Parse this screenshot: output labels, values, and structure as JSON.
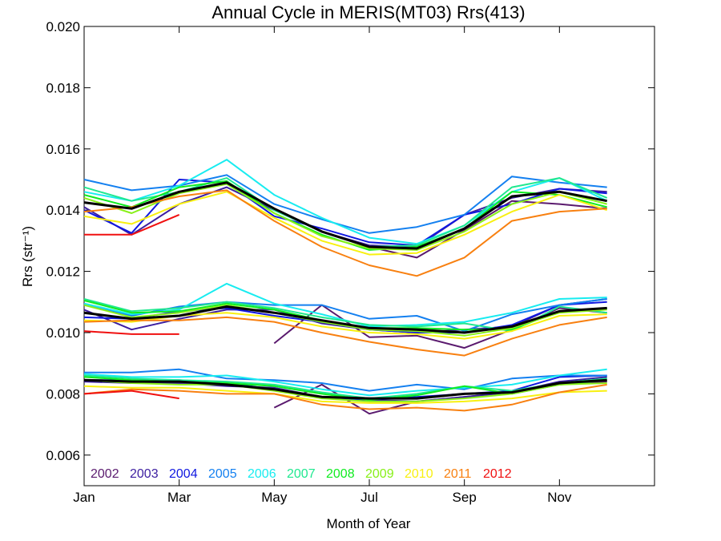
{
  "chart_data": {
    "type": "line",
    "title": "Annual Cycle in MERIS(MT03) Rrs(413)",
    "xlabel": "Month of Year",
    "ylabel": "Rrs (str⁻¹)",
    "xlim": [
      1,
      13
    ],
    "ylim": [
      0.005,
      0.02
    ],
    "x_ticks": [
      {
        "label": "Jan",
        "month": 1
      },
      {
        "label": "Mar",
        "month": 3
      },
      {
        "label": "May",
        "month": 5
      },
      {
        "label": "Jul",
        "month": 7
      },
      {
        "label": "Sep",
        "month": 9
      },
      {
        "label": "Nov",
        "month": 11
      }
    ],
    "y_ticks": [
      "0.006",
      "0.008",
      "0.010",
      "0.012",
      "0.014",
      "0.016",
      "0.018",
      "0.020"
    ],
    "legend_position": "bottom-left",
    "series": [
      {
        "name": "2002",
        "color": "#5a1a6e",
        "group": "upper",
        "values": [
          null,
          null,
          null,
          null,
          14.9,
          null,
          12.8,
          12.45,
          13.35,
          14.3,
          14.2,
          14.05
        ]
      },
      {
        "name": "2003",
        "color": "#3c1ea0",
        "group": "upper",
        "values": [
          14.1,
          13.2,
          14.2,
          14.75,
          14.0,
          13.3,
          12.85,
          12.8,
          13.85,
          14.4,
          14.7,
          14.6
        ]
      },
      {
        "name": "2004",
        "color": "#1018e0",
        "group": "upper",
        "values": [
          14.0,
          13.25,
          15.0,
          14.9,
          13.8,
          13.4,
          12.95,
          12.85,
          13.85,
          14.2,
          14.7,
          14.55
        ]
      },
      {
        "name": "2005",
        "color": "#1480f0",
        "group": "upper",
        "values": [
          15.0,
          14.65,
          14.8,
          15.15,
          14.2,
          13.7,
          13.25,
          13.45,
          13.85,
          15.1,
          14.9,
          14.75
        ]
      },
      {
        "name": "2006",
        "color": "#18ecf0",
        "group": "upper",
        "values": [
          14.6,
          14.3,
          14.8,
          15.65,
          14.5,
          13.75,
          13.1,
          12.9,
          13.5,
          14.6,
          15.05,
          14.3
        ]
      },
      {
        "name": "2007",
        "color": "#20e890",
        "group": "upper",
        "values": [
          14.75,
          14.3,
          14.6,
          15.05,
          14.0,
          13.3,
          12.8,
          12.85,
          13.5,
          14.75,
          15.05,
          14.4
        ]
      },
      {
        "name": "2008",
        "color": "#10ec20",
        "group": "upper",
        "values": [
          14.5,
          14.1,
          14.75,
          14.95,
          13.9,
          13.2,
          12.7,
          12.8,
          13.4,
          14.6,
          14.5,
          14.1
        ]
      },
      {
        "name": "2009",
        "color": "#88f018",
        "group": "upper",
        "values": [
          14.4,
          13.9,
          14.55,
          14.85,
          13.9,
          13.15,
          12.75,
          12.7,
          13.3,
          14.2,
          14.6,
          14.2
        ]
      },
      {
        "name": "2010",
        "color": "#f8f010",
        "group": "upper",
        "values": [
          13.8,
          13.55,
          14.2,
          14.6,
          13.75,
          13.0,
          12.55,
          12.6,
          13.2,
          13.95,
          14.5,
          14.0
        ]
      },
      {
        "name": "2011",
        "color": "#f88010",
        "group": "upper",
        "values": [
          13.95,
          14.1,
          14.45,
          14.65,
          13.65,
          12.8,
          12.2,
          11.85,
          12.45,
          13.65,
          13.95,
          14.05
        ]
      },
      {
        "name": "2012",
        "color": "#f01010",
        "group": "upper",
        "values": [
          13.2,
          13.2,
          13.85,
          null,
          null,
          null,
          null,
          null,
          null,
          null,
          null,
          null
        ]
      },
      {
        "name": "",
        "color": "#000000",
        "group": "upper",
        "mean": true,
        "values": [
          14.25,
          14.05,
          14.6,
          14.9,
          14.05,
          13.3,
          12.8,
          12.75,
          13.4,
          14.45,
          14.6,
          14.3
        ]
      },
      {
        "name": "2002",
        "color": "#5a1a6e",
        "group": "middle",
        "values": [
          null,
          null,
          null,
          null,
          9.65,
          10.9,
          9.85,
          9.9,
          9.5,
          10.1,
          10.8,
          10.65
        ]
      },
      {
        "name": "2003",
        "color": "#3c1ea0",
        "group": "middle",
        "values": [
          10.75,
          10.1,
          10.45,
          10.75,
          10.75,
          10.3,
          10.1,
          10.0,
          10.1,
          10.2,
          10.9,
          11.1
        ]
      },
      {
        "name": "2004",
        "color": "#1018e0",
        "group": "middle",
        "values": [
          10.5,
          10.45,
          10.7,
          10.8,
          10.55,
          10.35,
          10.1,
          10.0,
          10.0,
          10.25,
          10.9,
          11.0
        ]
      },
      {
        "name": "2005",
        "color": "#1480f0",
        "group": "middle",
        "values": [
          10.95,
          10.55,
          10.85,
          11.0,
          10.9,
          10.9,
          10.45,
          10.55,
          10.05,
          10.6,
          10.9,
          11.1
        ]
      },
      {
        "name": "2006",
        "color": "#18ecf0",
        "group": "middle",
        "values": [
          10.95,
          10.6,
          10.75,
          11.6,
          10.95,
          10.6,
          10.2,
          10.25,
          10.35,
          10.65,
          11.1,
          11.15
        ]
      },
      {
        "name": "2007",
        "color": "#20e890",
        "group": "middle",
        "values": [
          11.1,
          10.7,
          10.8,
          11.0,
          10.8,
          10.5,
          10.25,
          10.2,
          10.3,
          10.05,
          10.85,
          10.65
        ]
      },
      {
        "name": "2008",
        "color": "#10ec20",
        "group": "middle",
        "values": [
          11.05,
          10.65,
          10.7,
          10.95,
          10.75,
          10.4,
          10.15,
          10.15,
          10.1,
          10.1,
          10.7,
          10.8
        ]
      },
      {
        "name": "2009",
        "color": "#88f018",
        "group": "middle",
        "values": [
          10.9,
          10.5,
          10.65,
          10.9,
          10.65,
          10.35,
          10.1,
          10.05,
          9.9,
          10.15,
          10.65,
          10.75
        ]
      },
      {
        "name": "2010",
        "color": "#f8f010",
        "group": "middle",
        "values": [
          10.4,
          10.35,
          10.55,
          10.65,
          10.5,
          10.2,
          10.0,
          9.95,
          9.8,
          10.05,
          10.55,
          10.6
        ]
      },
      {
        "name": "2011",
        "color": "#f88010",
        "group": "middle",
        "values": [
          10.35,
          10.4,
          10.4,
          10.5,
          10.35,
          10.0,
          9.7,
          9.45,
          9.25,
          9.8,
          10.25,
          10.5
        ]
      },
      {
        "name": "2012",
        "color": "#f01010",
        "group": "middle",
        "values": [
          10.05,
          9.95,
          9.95,
          null,
          null,
          null,
          null,
          null,
          null,
          null,
          null,
          null
        ]
      },
      {
        "name": "",
        "color": "#000000",
        "group": "middle",
        "mean": true,
        "values": [
          10.65,
          10.45,
          10.55,
          10.85,
          10.65,
          10.4,
          10.15,
          10.1,
          10.0,
          10.2,
          10.7,
          10.8
        ]
      },
      {
        "name": "2002",
        "color": "#5a1a6e",
        "group": "lower",
        "values": [
          null,
          null,
          null,
          null,
          7.55,
          8.3,
          7.35,
          7.75,
          7.9,
          8.05,
          8.3,
          8.4
        ]
      },
      {
        "name": "2003",
        "color": "#3c1ea0",
        "group": "lower",
        "values": [
          8.4,
          8.35,
          8.35,
          8.25,
          8.2,
          7.9,
          7.8,
          7.75,
          7.9,
          8.05,
          8.4,
          8.55
        ]
      },
      {
        "name": "2004",
        "color": "#1018e0",
        "group": "lower",
        "values": [
          8.45,
          8.45,
          8.45,
          8.35,
          8.15,
          7.9,
          7.8,
          7.9,
          8.0,
          8.1,
          8.55,
          8.6
        ]
      },
      {
        "name": "2005",
        "color": "#1480f0",
        "group": "lower",
        "values": [
          8.7,
          8.7,
          8.8,
          8.5,
          8.45,
          8.35,
          8.1,
          8.3,
          8.15,
          8.5,
          8.6,
          8.6
        ]
      },
      {
        "name": "2006",
        "color": "#18ecf0",
        "group": "lower",
        "values": [
          8.65,
          8.55,
          8.55,
          8.6,
          8.4,
          8.15,
          7.95,
          8.1,
          8.2,
          8.3,
          8.6,
          8.8
        ]
      },
      {
        "name": "2007",
        "color": "#20e890",
        "group": "lower",
        "values": [
          8.6,
          8.5,
          8.45,
          8.4,
          8.3,
          8.05,
          7.85,
          8.0,
          8.25,
          8.1,
          8.35,
          8.5
        ]
      },
      {
        "name": "2008",
        "color": "#10ec20",
        "group": "lower",
        "values": [
          8.55,
          8.45,
          8.4,
          8.35,
          8.25,
          8.0,
          7.8,
          7.95,
          8.25,
          8.0,
          8.3,
          8.45
        ]
      },
      {
        "name": "2009",
        "color": "#88f018",
        "group": "lower",
        "values": [
          8.45,
          8.35,
          8.3,
          8.3,
          8.1,
          7.85,
          7.75,
          7.75,
          7.85,
          8.0,
          8.3,
          8.35
        ]
      },
      {
        "name": "2010",
        "color": "#f8f010",
        "group": "lower",
        "values": [
          8.25,
          8.2,
          8.2,
          8.1,
          8.0,
          7.75,
          7.7,
          7.7,
          7.75,
          7.85,
          8.05,
          8.1
        ]
      },
      {
        "name": "2011",
        "color": "#f88010",
        "group": "lower",
        "values": [
          8.0,
          8.15,
          8.1,
          8.0,
          8.0,
          7.65,
          7.5,
          7.55,
          7.45,
          7.65,
          8.05,
          8.3
        ]
      },
      {
        "name": "2012",
        "color": "#f01010",
        "group": "lower",
        "values": [
          8.0,
          8.1,
          7.85,
          null,
          null,
          null,
          null,
          null,
          null,
          null,
          null,
          null
        ]
      },
      {
        "name": "",
        "color": "#000000",
        "group": "lower",
        "mean": true,
        "values": [
          8.45,
          8.4,
          8.4,
          8.3,
          8.15,
          7.9,
          7.85,
          7.85,
          8.0,
          8.05,
          8.35,
          8.45
        ]
      }
    ],
    "legend": [
      {
        "label": "2002",
        "color": "#5a1a6e"
      },
      {
        "label": "2003",
        "color": "#3c1ea0"
      },
      {
        "label": "2004",
        "color": "#1018e0"
      },
      {
        "label": "2005",
        "color": "#1480f0"
      },
      {
        "label": "2006",
        "color": "#18ecf0"
      },
      {
        "label": "2007",
        "color": "#20e890"
      },
      {
        "label": "2008",
        "color": "#10ec20"
      },
      {
        "label": "2009",
        "color": "#88f018"
      },
      {
        "label": "2010",
        "color": "#f8f010"
      },
      {
        "label": "2011",
        "color": "#f88010"
      },
      {
        "label": "2012",
        "color": "#f01010"
      }
    ],
    "value_scale_note": "series values are Rrs x 1000"
  }
}
